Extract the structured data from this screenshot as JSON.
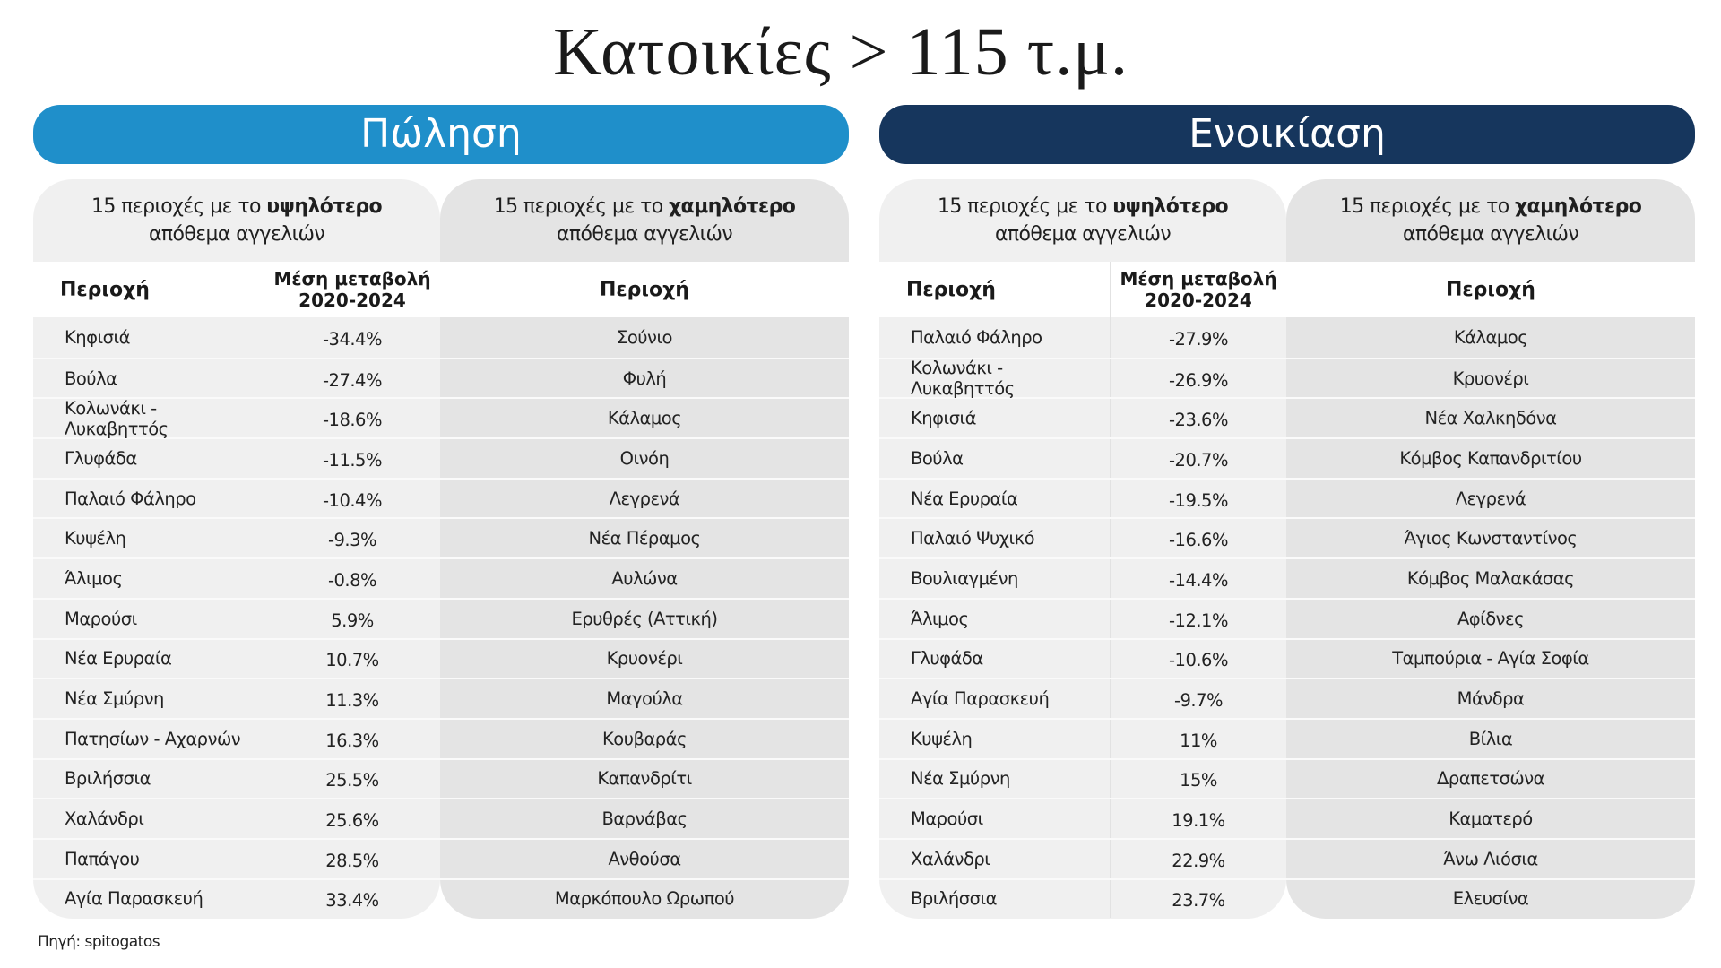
{
  "title": "Κατοικίες > 115 τ.μ.",
  "sale": {
    "band_label": "Πώληση",
    "high": {
      "heading_prefix": "15 περιοχές με το ",
      "heading_bold": "υψηλότερο",
      "heading_suffix": "απόθεμα αγγελιών",
      "col_area": "Περιοχή",
      "col_change_line1": "Μέση μεταβολή",
      "col_change_line2": "2020-2024",
      "rows": [
        {
          "area": "Κηφισιά",
          "change": "-34.4%"
        },
        {
          "area": "Βούλα",
          "change": "-27.4%"
        },
        {
          "area": "Κολωνάκι - Λυκαβηττός",
          "change": "-18.6%"
        },
        {
          "area": "Γλυφάδα",
          "change": "-11.5%"
        },
        {
          "area": "Παλαιό Φάληρο",
          "change": "-10.4%"
        },
        {
          "area": "Κυψέλη",
          "change": "-9.3%"
        },
        {
          "area": "Άλιμος",
          "change": "-0.8%"
        },
        {
          "area": "Μαρούσι",
          "change": "5.9%"
        },
        {
          "area": "Νέα Ερυραία",
          "change": "10.7%"
        },
        {
          "area": "Νέα Σμύρνη",
          "change": "11.3%"
        },
        {
          "area": "Πατησίων - Αχαρνών",
          "change": "16.3%"
        },
        {
          "area": "Βριλήσσια",
          "change": "25.5%"
        },
        {
          "area": "Χαλάνδρι",
          "change": "25.6%"
        },
        {
          "area": "Παπάγου",
          "change": "28.5%"
        },
        {
          "area": "Αγία Παρασκευή",
          "change": "33.4%"
        }
      ]
    },
    "low": {
      "heading_prefix": "15 περιοχές με το ",
      "heading_bold": "χαμηλότερο",
      "heading_suffix": "απόθεμα αγγελιών",
      "col_area": "Περιοχή",
      "rows": [
        "Σούνιο",
        "Φυλή",
        "Κάλαμος",
        "Οινόη",
        "Λεγρενά",
        "Νέα Πέραμος",
        "Αυλώνα",
        "Ερυθρές (Αττική)",
        "Κρυονέρι",
        "Μαγούλα",
        "Κουβαράς",
        "Καπανδρίτι",
        "Βαρνάβας",
        "Ανθούσα",
        "Μαρκόπουλο Ωρωπού"
      ]
    }
  },
  "rent": {
    "band_label": "Ενοικίαση",
    "high": {
      "heading_prefix": "15 περιοχές με το ",
      "heading_bold": "υψηλότερο",
      "heading_suffix": "απόθεμα αγγελιών",
      "col_area": "Περιοχή",
      "col_change_line1": "Μέση μεταβολή",
      "col_change_line2": "2020-2024",
      "rows": [
        {
          "area": "Παλαιό Φάληρο",
          "change": "-27.9%"
        },
        {
          "area": "Κολωνάκι - Λυκαβηττός",
          "change": "-26.9%"
        },
        {
          "area": "Κηφισιά",
          "change": "-23.6%"
        },
        {
          "area": "Βούλα",
          "change": "-20.7%"
        },
        {
          "area": "Νέα Ερυραία",
          "change": "-19.5%"
        },
        {
          "area": "Παλαιό Ψυχικό",
          "change": "-16.6%"
        },
        {
          "area": "Βουλιαγμένη",
          "change": "-14.4%"
        },
        {
          "area": "Άλιμος",
          "change": "-12.1%"
        },
        {
          "area": "Γλυφάδα",
          "change": "-10.6%"
        },
        {
          "area": "Αγία Παρασκευή",
          "change": "-9.7%"
        },
        {
          "area": "Κυψέλη",
          "change": "11%"
        },
        {
          "area": "Νέα Σμύρνη",
          "change": "15%"
        },
        {
          "area": "Μαρούσι",
          "change": "19.1%"
        },
        {
          "area": "Χαλάνδρι",
          "change": "22.9%"
        },
        {
          "area": "Βριλήσσια",
          "change": "23.7%"
        }
      ]
    },
    "low": {
      "heading_prefix": "15 περιοχές με το ",
      "heading_bold": "χαμηλότερο",
      "heading_suffix": "απόθεμα αγγελιών",
      "col_area": "Περιοχή",
      "rows": [
        "Κάλαμος",
        "Κρυονέρι",
        "Νέα Χαλκηδόνα",
        "Κόμβος Καπανδριτίου",
        "Λεγρενά",
        "Άγιος Κωνσταντίνος",
        "Κόμβος Μαλακάσας",
        "Αφίδνες",
        "Ταμπούρια - Αγία Σοφία",
        "Μάνδρα",
        "Βίλια",
        "Δραπετσώνα",
        "Καματερό",
        "Άνω Λιόσια",
        "Ελευσίνα"
      ]
    }
  },
  "source": "Πηγή: spitogatos",
  "colors": {
    "sale_band": "#1f8fca",
    "rent_band": "#16365d",
    "card_high_bg": "#f0f0f0",
    "card_low_bg": "#e4e4e4"
  }
}
